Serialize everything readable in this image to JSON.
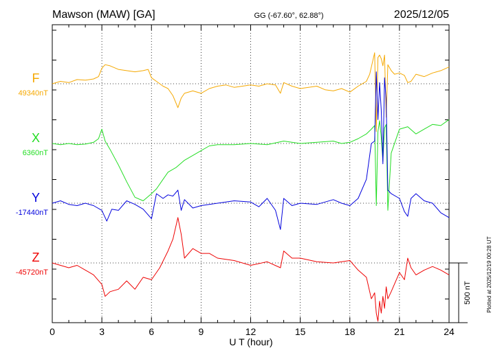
{
  "chart_data": {
    "type": "line",
    "title": "Mawson (MAW)  [GA]",
    "coords": "GG (-67.60°,  62.88°)",
    "date": "2025/12/05",
    "xlabel": "U T (hour)",
    "xlim": [
      0,
      24
    ],
    "xticks": [
      "0",
      "3",
      "6",
      "9",
      "12",
      "15",
      "18",
      "21",
      "24"
    ],
    "scale_label": "500 nT",
    "scale_nT": 500,
    "plotted_note": "Plotted at 2025/12/19 00:28 UT",
    "series": [
      {
        "name": "F",
        "baseline_label": "49340nT",
        "color": "#f5a800",
        "t": [
          0,
          0.5,
          1,
          1.5,
          2,
          2.5,
          2.8,
          3.0,
          3.2,
          3.5,
          4.0,
          4.5,
          5.0,
          5.5,
          5.8,
          6.0,
          6.3,
          6.7,
          7.0,
          7.3,
          7.6,
          7.8,
          8.0,
          8.5,
          9.0,
          9.5,
          10,
          10.5,
          11,
          11.5,
          12,
          12.5,
          13,
          13.5,
          13.8,
          14,
          14.5,
          15,
          15.5,
          16,
          16.5,
          17,
          17.5,
          18,
          18.5,
          19,
          19.2,
          19.4,
          19.5,
          19.6,
          19.7,
          19.8,
          19.9,
          20.0,
          20.1,
          20.2,
          20.3,
          20.5,
          20.7,
          21,
          21.3,
          21.5,
          21.7,
          22,
          22.5,
          23,
          23.5,
          24
        ],
        "v": [
          0,
          20,
          10,
          35,
          30,
          40,
          60,
          130,
          160,
          150,
          120,
          110,
          100,
          110,
          120,
          50,
          20,
          -20,
          -40,
          -100,
          -200,
          -120,
          -80,
          -60,
          -80,
          -40,
          -20,
          -10,
          -30,
          -20,
          -10,
          -20,
          0,
          -10,
          -80,
          10,
          -20,
          -40,
          -30,
          -20,
          -50,
          -60,
          -40,
          -70,
          -20,
          20,
          80,
          200,
          260,
          -400,
          220,
          240,
          210,
          150,
          240,
          -280,
          160,
          110,
          80,
          90,
          70,
          10,
          20,
          80,
          60,
          90,
          110,
          140
        ]
      },
      {
        "name": "X",
        "baseline_label": "6360nT",
        "color": "#22dd22",
        "t": [
          0,
          0.5,
          1,
          1.5,
          2,
          2.5,
          2.8,
          3.0,
          3.2,
          3.5,
          4.0,
          4.5,
          5.0,
          5.5,
          6.0,
          6.3,
          6.7,
          7.0,
          7.5,
          8.0,
          8.5,
          9.0,
          9.5,
          10,
          11,
          12,
          13,
          14,
          15,
          16,
          17,
          17.5,
          18,
          18.5,
          19,
          19.3,
          19.5,
          19.6,
          19.7,
          19.8,
          19.9,
          20.0,
          20.1,
          20.2,
          20.3,
          20.5,
          21,
          21.5,
          22,
          22.5,
          23,
          23.5,
          24
        ],
        "v": [
          0,
          -10,
          0,
          -10,
          -5,
          10,
          40,
          120,
          20,
          -50,
          -180,
          -320,
          -450,
          -480,
          -420,
          -380,
          -300,
          -240,
          -200,
          -140,
          -100,
          -60,
          -20,
          -10,
          -10,
          0,
          -10,
          20,
          0,
          10,
          20,
          0,
          10,
          40,
          80,
          120,
          150,
          -520,
          100,
          190,
          50,
          -150,
          130,
          160,
          -560,
          -80,
          120,
          140,
          80,
          120,
          160,
          150,
          200
        ]
      },
      {
        "name": "Y",
        "baseline_label": "-17440nT",
        "color": "#0000dd",
        "t": [
          0,
          0.5,
          1,
          1.5,
          2,
          2.5,
          3.0,
          3.3,
          3.6,
          4.0,
          4.5,
          5.0,
          5.5,
          6.0,
          6.3,
          6.7,
          7.0,
          7.3,
          7.6,
          7.8,
          8.0,
          8.5,
          9.0,
          10,
          11,
          12,
          12.5,
          13,
          13.5,
          13.8,
          14,
          14.5,
          15,
          16,
          17,
          17.5,
          18,
          18.5,
          19,
          19.3,
          19.5,
          19.6,
          19.7,
          19.8,
          19.9,
          20.0,
          20.1,
          20.2,
          20.3,
          20.5,
          21,
          21.3,
          21.5,
          21.7,
          22,
          22.5,
          23,
          23.5,
          24
        ],
        "v": [
          0,
          20,
          -10,
          -20,
          0,
          -20,
          -60,
          -150,
          -50,
          -60,
          20,
          -10,
          -50,
          -130,
          80,
          40,
          70,
          60,
          110,
          -60,
          30,
          -40,
          -20,
          0,
          20,
          10,
          -30,
          40,
          -60,
          -220,
          40,
          -20,
          0,
          -10,
          30,
          0,
          -20,
          40,
          200,
          500,
          520,
          1100,
          700,
          1010,
          780,
          330,
          1050,
          860,
          110,
          80,
          40,
          -70,
          -110,
          40,
          80,
          20,
          0,
          -80,
          -120
        ]
      },
      {
        "name": "Z",
        "baseline_label": "-45720nT",
        "color": "#ee0000",
        "t": [
          0,
          0.5,
          1,
          1.5,
          2,
          2.5,
          3.0,
          3.2,
          3.5,
          4.0,
          4.5,
          5.0,
          5.5,
          6.0,
          6.5,
          7.0,
          7.3,
          7.6,
          7.8,
          8.0,
          8.5,
          9.0,
          9.5,
          10,
          11,
          12,
          13,
          13.8,
          14,
          14.5,
          15,
          16,
          17,
          18,
          18.5,
          19,
          19.3,
          19.5,
          19.6,
          19.7,
          19.8,
          19.9,
          20.0,
          20.1,
          20.2,
          20.3,
          20.5,
          21,
          21.3,
          21.5,
          21.7,
          22,
          22.5,
          23,
          23.5,
          24
        ],
        "v": [
          0,
          -20,
          -40,
          -20,
          -60,
          -100,
          -180,
          -280,
          -240,
          -220,
          -150,
          -220,
          -120,
          -140,
          -40,
          100,
          200,
          380,
          240,
          40,
          120,
          80,
          80,
          40,
          20,
          -20,
          10,
          -40,
          100,
          40,
          40,
          10,
          0,
          20,
          -60,
          -120,
          -300,
          -250,
          -420,
          -520,
          -320,
          -420,
          -280,
          -380,
          -200,
          -300,
          -240,
          -80,
          -140,
          40,
          -40,
          -100,
          -60,
          -30,
          -60,
          -100
        ]
      }
    ]
  }
}
